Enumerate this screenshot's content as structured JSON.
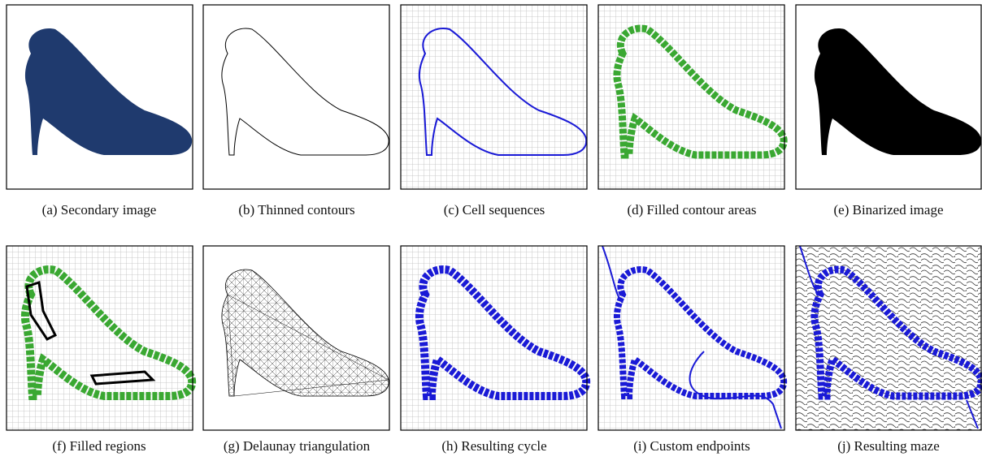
{
  "panels": [
    {
      "caption": "(a) Secondary image"
    },
    {
      "caption": "(b) Thinned contours"
    },
    {
      "caption": "(c) Cell sequences"
    },
    {
      "caption": "(d) Filled contour areas"
    },
    {
      "caption": "(e) Binarized image"
    },
    {
      "caption": "(f) Filled regions"
    },
    {
      "caption": "(g) Delaunay triangulation"
    },
    {
      "caption": "(h) Resulting cycle"
    },
    {
      "caption": "(i) Custom endpoints"
    },
    {
      "caption": "(j) Resulting maze"
    }
  ]
}
